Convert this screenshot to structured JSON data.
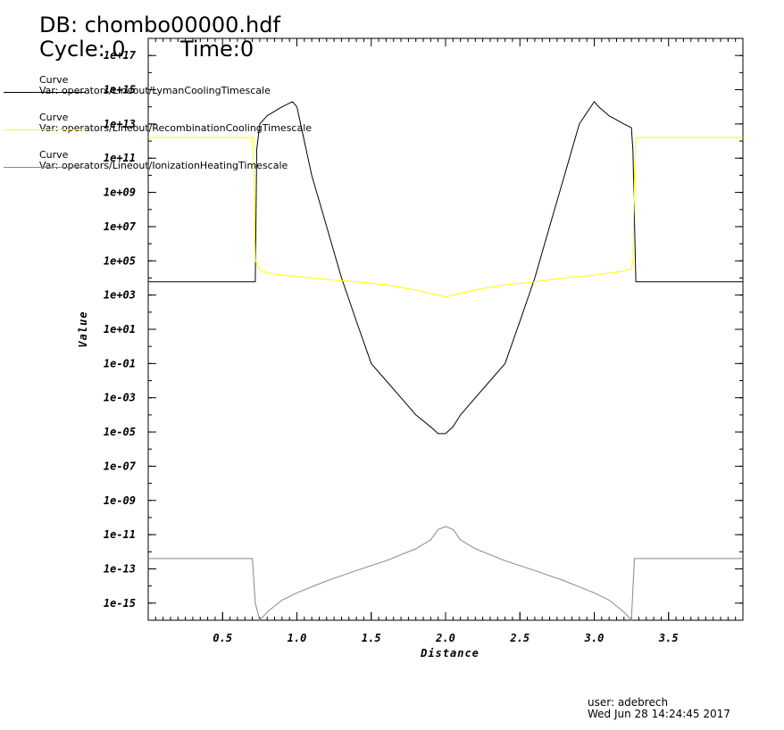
{
  "header": {
    "db": "DB: chombo00000.hdf",
    "cycle": "Cycle: 0",
    "time": "Time:0"
  },
  "legend": [
    {
      "title": "Curve",
      "var": "Var: operators/Lineout/LymanCoolingTimescale",
      "color": "#000000"
    },
    {
      "title": "Curve",
      "var": "Var: operators/Lineout/RecombinationCoolingTimescale",
      "color": "#ffff00"
    },
    {
      "title": "Curve",
      "var": "Var: operators/Lineout/IonizationHeatingTimescale",
      "color": "#888888"
    }
  ],
  "footer": {
    "user": "user: adebrech",
    "date": "Wed Jun 28 14:24:45 2017"
  },
  "chart_data": {
    "type": "line",
    "xlabel": "Distance",
    "ylabel": "Value",
    "xlim": [
      0,
      4.0
    ],
    "ylim": [
      1e-16,
      1e+18
    ],
    "yscale": "log",
    "grid": false,
    "xticks": [
      "0.5",
      "1.0",
      "1.5",
      "2.0",
      "2.5",
      "3.0",
      "3.5"
    ],
    "yticks": [
      "1e-15",
      "1e-13",
      "1e-11",
      "1e-09",
      "1e-07",
      "1e-05",
      "1e-03",
      "1e-01",
      "1e+01",
      "1e+03",
      "1e+05",
      "1e+07",
      "1e+09",
      "1e+11",
      "1e+13",
      "1e+15",
      "1e+17"
    ],
    "series": [
      {
        "name": "Var: operators/Lineout/LymanCoolingTimescale",
        "color": "#000000",
        "x": [
          0,
          0.7,
          0.72,
          0.73,
          0.75,
          0.8,
          0.9,
          0.97,
          1.0,
          1.1,
          1.2,
          1.3,
          1.4,
          1.5,
          1.6,
          1.7,
          1.8,
          1.9,
          1.95,
          2.0,
          2.05,
          2.1,
          2.2,
          2.3,
          2.4,
          2.5,
          2.6,
          2.7,
          2.8,
          2.9,
          3.0,
          3.03,
          3.1,
          3.2,
          3.25,
          3.26,
          3.28,
          3.3,
          4.0
        ],
        "y": [
          6000.0,
          6000.0,
          6000.0,
          300000000000.0,
          10000000000000.0,
          30000000000000.0,
          100000000000000.0,
          200000000000000.0,
          100000000000000.0,
          10000000000.0,
          10000000.0,
          10000.0,
          30.0,
          0.1,
          0.01,
          0.001,
          0.0001,
          2e-05,
          8e-06,
          8e-06,
          2e-05,
          0.0001,
          0.001,
          0.01,
          0.1,
          30.0,
          10000.0,
          10000000.0,
          10000000000.0,
          10000000000000.0,
          200000000000000.0,
          100000000000000.0,
          30000000000000.0,
          10000000000000.0,
          6000000000000.0,
          300000000000.0,
          6000.0,
          6000.0,
          6000.0
        ]
      },
      {
        "name": "Var: operators/Lineout/RecombinationCoolingTimescale",
        "color": "#ffff00",
        "x": [
          0,
          0.7,
          0.71,
          0.72,
          0.75,
          0.8,
          0.9,
          1.0,
          1.2,
          1.4,
          1.6,
          1.8,
          1.9,
          1.95,
          2.0,
          2.05,
          2.1,
          2.2,
          2.4,
          2.6,
          2.8,
          3.0,
          3.2,
          3.25,
          3.26,
          3.27,
          3.28,
          4.0
        ],
        "y": [
          1600000000000.0,
          1600000000000.0,
          10000000000.0,
          100000.0,
          30000.0,
          20000.0,
          15000.0,
          12000.0,
          8000.0,
          6000.0,
          4000.0,
          2000.0,
          1200.0,
          1000.0,
          800.0,
          1000.0,
          1300.0,
          2000.0,
          4000.0,
          6000.0,
          10000.0,
          15000.0,
          25000.0,
          35000.0,
          100000.0,
          10000000000.0,
          1600000000000.0,
          1600000000000.0
        ]
      },
      {
        "name": "Var: operators/Lineout/IonizationHeatingTimescale",
        "color": "#888888",
        "x": [
          0,
          0.7,
          0.72,
          0.75,
          0.8,
          0.9,
          1.0,
          1.2,
          1.4,
          1.6,
          1.8,
          1.9,
          1.95,
          2.0,
          2.05,
          2.1,
          2.2,
          2.4,
          2.6,
          2.8,
          3.0,
          3.1,
          3.2,
          3.25,
          3.27,
          3.3,
          4.0
        ],
        "y": [
          4e-13,
          4e-13,
          1e-15,
          1e-16,
          3e-16,
          1.5e-15,
          4e-15,
          2e-14,
          8e-14,
          3e-13,
          1.5e-12,
          5e-12,
          2e-11,
          3e-11,
          2e-11,
          5e-12,
          1.5e-12,
          3e-13,
          8e-14,
          2e-14,
          4e-15,
          1.5e-15,
          3e-16,
          1e-16,
          4e-13,
          4e-13,
          4e-13
        ]
      }
    ]
  }
}
